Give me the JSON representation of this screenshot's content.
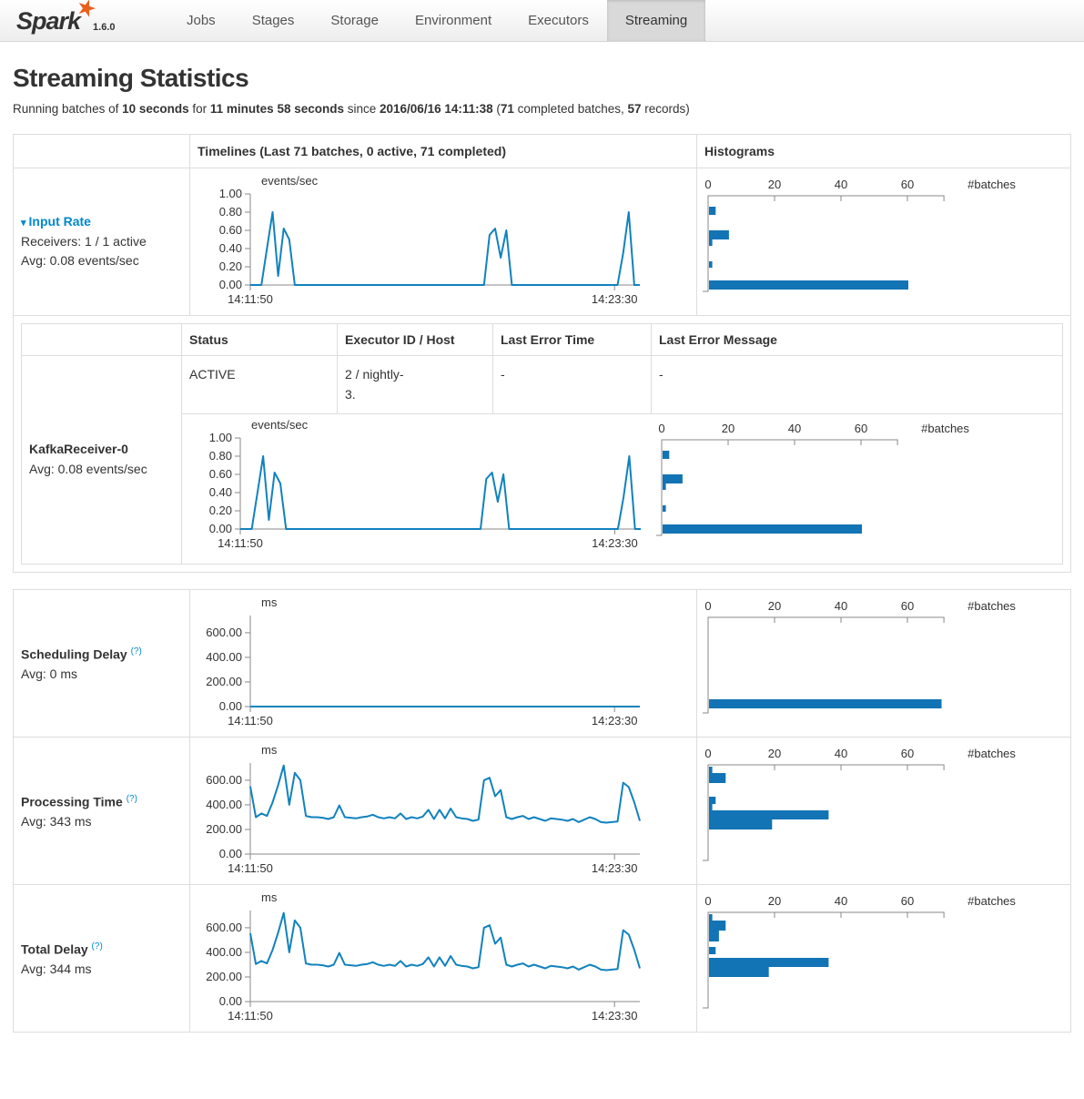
{
  "nav": {
    "brand": "Spark",
    "version": "1.6.0",
    "star": "★",
    "tabs": [
      {
        "label": "Jobs",
        "active": false
      },
      {
        "label": "Stages",
        "active": false
      },
      {
        "label": "Storage",
        "active": false
      },
      {
        "label": "Environment",
        "active": false
      },
      {
        "label": "Executors",
        "active": false
      },
      {
        "label": "Streaming",
        "active": true
      }
    ]
  },
  "page": {
    "title": "Streaming Statistics"
  },
  "summary": [
    {
      "t": "Running batches of ",
      "b": false
    },
    {
      "t": "10 seconds",
      "b": true
    },
    {
      "t": " for ",
      "b": false
    },
    {
      "t": "11 minutes 58 seconds",
      "b": true
    },
    {
      "t": " since ",
      "b": false
    },
    {
      "t": "2016/06/16 14:11:38",
      "b": true
    },
    {
      "t": " (",
      "b": false
    },
    {
      "t": "71",
      "b": true
    },
    {
      "t": " completed batches, ",
      "b": false
    },
    {
      "t": "57",
      "b": true
    },
    {
      "t": " records)",
      "b": false
    }
  ],
  "stats_table": {
    "timelines_header": "Timelines (Last 71 batches, 0 active, 71 completed)",
    "histograms_header": "Histograms"
  },
  "input_rate": {
    "caret": "▾",
    "label": "Input Rate",
    "receivers": "Receivers: 1 / 1 active",
    "avg": "Avg: 0.08 events/sec"
  },
  "receiver_table": {
    "status_header": "Status",
    "executor_header": "Executor ID / Host",
    "last_error_time_header": "Last Error Time",
    "last_error_message_header": "Last Error Message",
    "receiver_name": "KafkaReceiver-0",
    "receiver_avg": "Avg: 0.08 events/sec",
    "row": {
      "status": "ACTIVE",
      "executor_line1": "2 / nightly-",
      "executor_line2": "3.",
      "last_error_time": "-",
      "last_error_message": "-"
    }
  },
  "scheduling_delay": {
    "label": "Scheduling Delay",
    "help": "(?)",
    "avg": "Avg: 0 ms"
  },
  "processing_time": {
    "label": "Processing Time",
    "help": "(?)",
    "avg": "Avg: 343 ms"
  },
  "total_delay": {
    "label": "Total Delay",
    "help": "(?)",
    "avg": "Avg: 344 ms"
  },
  "chart_data": {
    "colors": {
      "line": "#1182BE",
      "bar": "#1274B5",
      "axis": "#888888",
      "text": "#333333",
      "link": "#0088cc"
    },
    "timelines": {
      "input_rate": {
        "type": "line",
        "ylabel": "events/sec",
        "ymax": 1,
        "yticks": [
          0,
          0.2,
          0.4,
          0.6,
          0.8,
          1
        ],
        "x_start": "14:11:50",
        "x_end": "14:23:30",
        "values": [
          0,
          0,
          0,
          0.4,
          0.8,
          0.1,
          0.62,
          0.5,
          0,
          0,
          0,
          0,
          0,
          0,
          0,
          0,
          0,
          0,
          0,
          0,
          0,
          0,
          0,
          0,
          0,
          0,
          0,
          0,
          0,
          0,
          0,
          0,
          0,
          0,
          0,
          0,
          0,
          0,
          0,
          0,
          0,
          0,
          0,
          0.55,
          0.62,
          0.3,
          0.6,
          0,
          0,
          0,
          0,
          0,
          0,
          0,
          0,
          0,
          0,
          0,
          0,
          0,
          0,
          0,
          0,
          0,
          0,
          0,
          0,
          0.35,
          0.8,
          0,
          0
        ]
      },
      "receiver_0": {
        "type": "line",
        "ylabel": "events/sec",
        "ymax": 1,
        "yticks": [
          0,
          0.2,
          0.4,
          0.6,
          0.8,
          1
        ],
        "x_start": "14:11:50",
        "x_end": "14:23:30",
        "values": [
          0,
          0,
          0,
          0.4,
          0.8,
          0.1,
          0.62,
          0.5,
          0,
          0,
          0,
          0,
          0,
          0,
          0,
          0,
          0,
          0,
          0,
          0,
          0,
          0,
          0,
          0,
          0,
          0,
          0,
          0,
          0,
          0,
          0,
          0,
          0,
          0,
          0,
          0,
          0,
          0,
          0,
          0,
          0,
          0,
          0,
          0.55,
          0.62,
          0.3,
          0.6,
          0,
          0,
          0,
          0,
          0,
          0,
          0,
          0,
          0,
          0,
          0,
          0,
          0,
          0,
          0,
          0,
          0,
          0,
          0,
          0,
          0.35,
          0.8,
          0,
          0
        ]
      },
      "scheduling_delay": {
        "type": "line",
        "ylabel": "ms",
        "ymax": 740,
        "yticks": [
          0,
          200,
          400,
          600
        ],
        "x_start": "14:11:50",
        "x_end": "14:23:30",
        "values": [
          0,
          0,
          0,
          0,
          0,
          0,
          0,
          0,
          0,
          0,
          0,
          0,
          0,
          0,
          0,
          0,
          0,
          0,
          0,
          0,
          0,
          0,
          0,
          0,
          0,
          0,
          0,
          0,
          0,
          0,
          0,
          0,
          0,
          0,
          0,
          0,
          0,
          0,
          0,
          0,
          0,
          0,
          0,
          0,
          0,
          0,
          0,
          0,
          0,
          0,
          0,
          0,
          0,
          0,
          0,
          0,
          0,
          0,
          0,
          0,
          0,
          0,
          0,
          0,
          0,
          0,
          0,
          0,
          0,
          0,
          0
        ]
      },
      "processing_time": {
        "type": "line",
        "ylabel": "ms",
        "ymax": 740,
        "yticks": [
          0,
          200,
          400,
          600
        ],
        "x_start": "14:11:50",
        "x_end": "14:23:30",
        "values": [
          550,
          300,
          330,
          310,
          420,
          560,
          720,
          400,
          660,
          600,
          310,
          300,
          300,
          295,
          285,
          300,
          395,
          300,
          295,
          290,
          300,
          305,
          320,
          300,
          290,
          300,
          290,
          330,
          285,
          300,
          290,
          305,
          360,
          285,
          360,
          290,
          370,
          300,
          290,
          285,
          270,
          280,
          600,
          620,
          470,
          520,
          300,
          285,
          300,
          310,
          285,
          300,
          285,
          270,
          290,
          285,
          280,
          270,
          285,
          260,
          280,
          300,
          285,
          260,
          255,
          260,
          265,
          580,
          545,
          420,
          270
        ]
      },
      "total_delay": {
        "type": "line",
        "ylabel": "ms",
        "ymax": 740,
        "yticks": [
          0,
          200,
          400,
          600
        ],
        "x_start": "14:11:50",
        "x_end": "14:23:30",
        "values": [
          555,
          305,
          330,
          310,
          420,
          560,
          720,
          400,
          660,
          600,
          310,
          300,
          300,
          295,
          285,
          300,
          395,
          300,
          295,
          290,
          300,
          305,
          320,
          300,
          290,
          300,
          290,
          330,
          285,
          300,
          290,
          305,
          360,
          285,
          360,
          290,
          370,
          300,
          290,
          285,
          270,
          280,
          600,
          620,
          470,
          520,
          300,
          285,
          300,
          310,
          285,
          300,
          285,
          270,
          290,
          285,
          280,
          270,
          285,
          260,
          280,
          300,
          285,
          260,
          255,
          260,
          265,
          580,
          545,
          420,
          270
        ]
      }
    },
    "histograms": {
      "input_rate": {
        "type": "bar",
        "xlabel": "#batches",
        "xmax": 71,
        "xticks": [
          0,
          20,
          40,
          60
        ],
        "bars": [
          {
            "offset": 12,
            "height": 9,
            "count": 2
          },
          {
            "offset": 38,
            "height": 10,
            "count": 6
          },
          {
            "offset": 48,
            "height": 7,
            "count": 1
          },
          {
            "offset": 72,
            "height": 7,
            "count": 1
          },
          {
            "offset": 93,
            "height": 10,
            "count": 60
          }
        ]
      },
      "receiver_0": {
        "type": "bar",
        "xlabel": "#batches",
        "xmax": 71,
        "xticks": [
          0,
          20,
          40,
          60
        ],
        "bars": [
          {
            "offset": 12,
            "height": 9,
            "count": 2
          },
          {
            "offset": 38,
            "height": 10,
            "count": 6
          },
          {
            "offset": 48,
            "height": 7,
            "count": 1
          },
          {
            "offset": 72,
            "height": 7,
            "count": 1
          },
          {
            "offset": 93,
            "height": 10,
            "count": 60
          }
        ]
      },
      "scheduling_delay": {
        "type": "bar",
        "xlabel": "#batches",
        "xmax": 71,
        "xticks": [
          0,
          20,
          40,
          60
        ],
        "bars": [
          {
            "offset": 90,
            "height": 10,
            "count": 70
          }
        ]
      },
      "processing_time": {
        "type": "bar",
        "xlabel": "#batches",
        "xmax": 71,
        "xticks": [
          0,
          20,
          40,
          60
        ],
        "bars": [
          {
            "offset": 2,
            "height": 7,
            "count": 1
          },
          {
            "offset": 9,
            "height": 11,
            "count": 5
          },
          {
            "offset": 35,
            "height": 8,
            "count": 2
          },
          {
            "offset": 43,
            "height": 7,
            "count": 1
          },
          {
            "offset": 50,
            "height": 10,
            "count": 36
          },
          {
            "offset": 60,
            "height": 11,
            "count": 19
          }
        ]
      },
      "total_delay": {
        "type": "bar",
        "xlabel": "#batches",
        "xmax": 71,
        "xticks": [
          0,
          20,
          40,
          60
        ],
        "bars": [
          {
            "offset": 2,
            "height": 7,
            "count": 1
          },
          {
            "offset": 9,
            "height": 11,
            "count": 5
          },
          {
            "offset": 20,
            "height": 12,
            "count": 3
          },
          {
            "offset": 38,
            "height": 8,
            "count": 2
          },
          {
            "offset": 50,
            "height": 10,
            "count": 36
          },
          {
            "offset": 60,
            "height": 11,
            "count": 18
          }
        ]
      }
    }
  }
}
